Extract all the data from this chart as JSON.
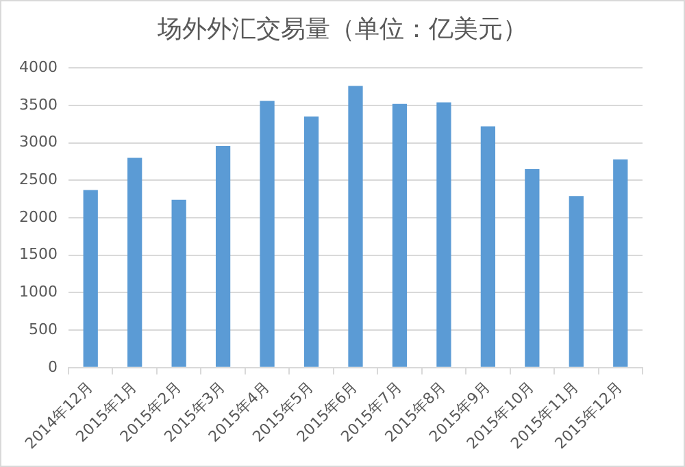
{
  "chart_data": {
    "type": "bar",
    "title": "场外外汇交易量（单位：亿美元）",
    "categories": [
      "2014年12月",
      "2015年1月",
      "2015年2月",
      "2015年3月",
      "2015年4月",
      "2015年5月",
      "2015年6月",
      "2015年7月",
      "2015年8月",
      "2015年9月",
      "2015年10月",
      "2015年11月",
      "2015年12月"
    ],
    "values": [
      2370,
      2800,
      2240,
      2960,
      3560,
      3350,
      3760,
      3520,
      3540,
      3220,
      2650,
      2290,
      2780
    ],
    "color": "#5b9bd5",
    "ylim": [
      0,
      4000
    ],
    "yticks": [
      0,
      500,
      1000,
      1500,
      2000,
      2500,
      3000,
      3500,
      4000
    ],
    "grid": "y"
  }
}
